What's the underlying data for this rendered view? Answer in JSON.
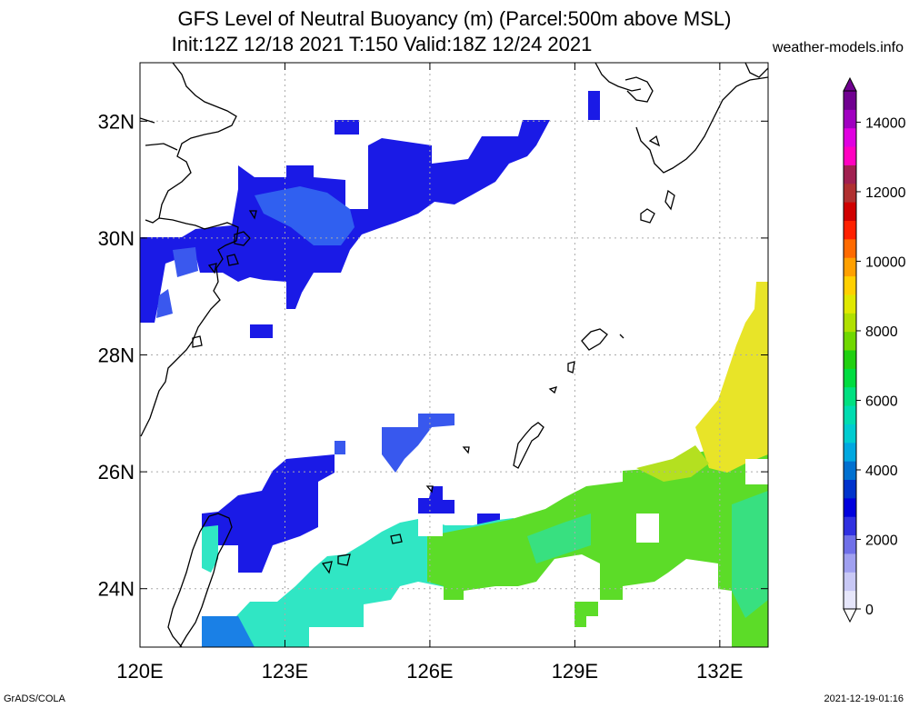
{
  "title": {
    "line1": "GFS Level of Neutral Buoyancy (m) (Parcel:500m above MSL)",
    "line2": "Init:12Z 12/18 2021 T:150 Valid:18Z 12/24 2021",
    "site": "weather-models.info"
  },
  "footer": {
    "left": "GrADS/COLA",
    "right": "2021-12-19-01:16"
  },
  "map": {
    "lon_range": [
      120,
      133
    ],
    "lat_range": [
      23,
      33
    ],
    "lon_ticks": [
      {
        "v": 120,
        "label": "120E"
      },
      {
        "v": 123,
        "label": "123E"
      },
      {
        "v": 126,
        "label": "126E"
      },
      {
        "v": 129,
        "label": "129E"
      },
      {
        "v": 132,
        "label": "132E"
      }
    ],
    "lat_ticks": [
      {
        "v": 32,
        "label": "32N"
      },
      {
        "v": 30,
        "label": "30N"
      },
      {
        "v": 28,
        "label": "28N"
      },
      {
        "v": 26,
        "label": "26N"
      },
      {
        "v": 24,
        "label": "24N"
      }
    ]
  },
  "colorbar": {
    "labels": [
      "0",
      "2000",
      "4000",
      "6000",
      "8000",
      "10000",
      "12000",
      "14000"
    ],
    "colors": [
      "#e6e6fa",
      "#c8c8f5",
      "#a0a0f0",
      "#7070e8",
      "#3030e0",
      "#0000dd",
      "#0033cc",
      "#0070d0",
      "#00a8e0",
      "#00ccd0",
      "#00dcb0",
      "#00e080",
      "#00dc40",
      "#20d010",
      "#70d800",
      "#b0e000",
      "#e0e800",
      "#ffd000",
      "#ffa000",
      "#ff6a00",
      "#ff2000",
      "#d00000",
      "#b03030",
      "#a02050",
      "#ff00c0",
      "#e000e0",
      "#a000c0",
      "#700090"
    ]
  },
  "colors": {
    "low_blue": "#1a1ae6",
    "mid_blue": "#2f5cf0",
    "cyan": "#30e8c8",
    "green": "#60dc20",
    "yellow": "#f0e020"
  }
}
